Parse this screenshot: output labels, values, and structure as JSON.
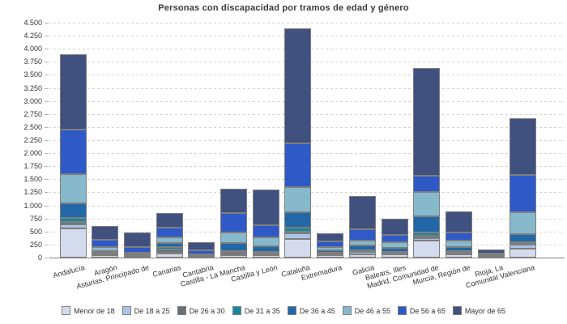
{
  "chart": {
    "title": "Personas con discapacidad por tramos de edad y género"
  },
  "chart_data": {
    "type": "bar",
    "stacked": true,
    "title": "Personas con discapacidad por tramos de edad y género",
    "xlabel": "",
    "ylabel": "",
    "ylim": [
      0,
      4500
    ],
    "y_tick_step": 250,
    "y_tick_labels": [
      "0",
      "250",
      "500",
      "750",
      "1.000",
      "1.250",
      "1.500",
      "1.750",
      "2.000",
      "2.250",
      "2.500",
      "2.750",
      "3.000",
      "3.250",
      "3.500",
      "3.750",
      "4.000",
      "4.250",
      "4.500"
    ],
    "grid": "dashed-horizontal",
    "legend_position": "bottom",
    "categories": [
      "Andalucía",
      "Aragón",
      "Asturias, Principado de",
      "Canarias",
      "Cantabria",
      "Castilla - La Mancha",
      "Castilla y León",
      "Cataluña",
      "Extremadura",
      "Galicia",
      "Balears, Illes",
      "Madrid, Comunidad de",
      "Murcia, Región de",
      "Rioja, La",
      "Comunitat Valenciana"
    ],
    "series": [
      {
        "name": "Menor de 18",
        "color": "#d5dbef",
        "values": [
          555,
          40,
          10,
          75,
          15,
          45,
          40,
          357,
          50,
          69,
          60,
          331,
          67,
          15,
          170
        ]
      },
      {
        "name": "De 18 a 25",
        "color": "#a9c4e6",
        "values": [
          82,
          18,
          8,
          23,
          8,
          18,
          18,
          108,
          19,
          35,
          15,
          41,
          15,
          5,
          79
        ]
      },
      {
        "name": "De 26 a 30",
        "color": "#6b6f76",
        "values": [
          42,
          25,
          6,
          52,
          5,
          45,
          46,
          36,
          15,
          15,
          23,
          52,
          30,
          5,
          10
        ]
      },
      {
        "name": "De 31 a 35",
        "color": "#17889c",
        "values": [
          82,
          8,
          18,
          47,
          12,
          12,
          5,
          78,
          10,
          16,
          15,
          62,
          12,
          5,
          31
        ]
      },
      {
        "name": "De 36 a 45",
        "color": "#2268a8",
        "values": [
          283,
          28,
          15,
          82,
          10,
          152,
          103,
          294,
          51,
          102,
          78,
          300,
          78,
          10,
          155
        ]
      },
      {
        "name": "De 46 a 55",
        "color": "#87b9cd",
        "values": [
          558,
          83,
          41,
          104,
          17,
          204,
          171,
          481,
          62,
          94,
          99,
          475,
          119,
          15,
          429
        ]
      },
      {
        "name": "De 56 a 65",
        "color": "#2e59c7",
        "values": [
          843,
          139,
          104,
          191,
          78,
          382,
          242,
          838,
          104,
          217,
          144,
          311,
          165,
          30,
          709
        ]
      },
      {
        "name": "Mayor de 65",
        "color": "#40507f",
        "values": [
          1449,
          264,
          284,
          274,
          155,
          465,
          673,
          2199,
          154,
          626,
          311,
          2058,
          403,
          65,
          1086
        ]
      }
    ]
  }
}
